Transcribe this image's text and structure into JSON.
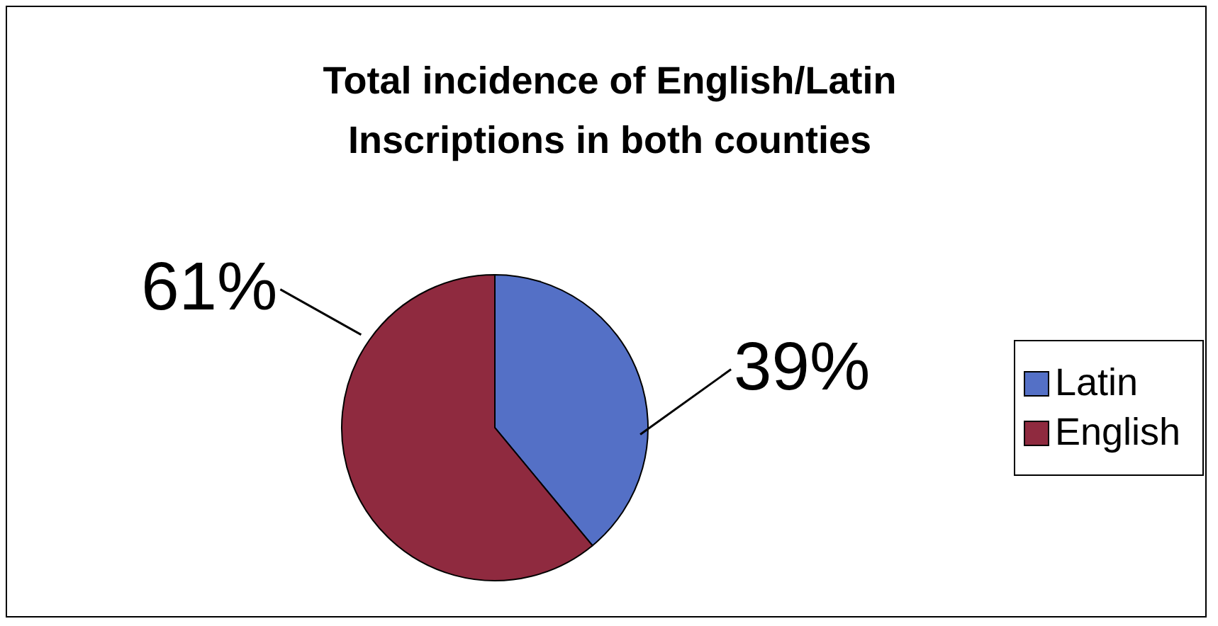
{
  "chart_data": {
    "type": "pie",
    "title": "Total incidence of English/Latin Inscriptions  in both counties",
    "categories": [
      "Latin",
      "English"
    ],
    "values": [
      39,
      61
    ],
    "colors": [
      "#5470c6",
      "#8f2a3f"
    ],
    "value_labels": [
      "39%",
      "61%"
    ],
    "legend": "right"
  }
}
